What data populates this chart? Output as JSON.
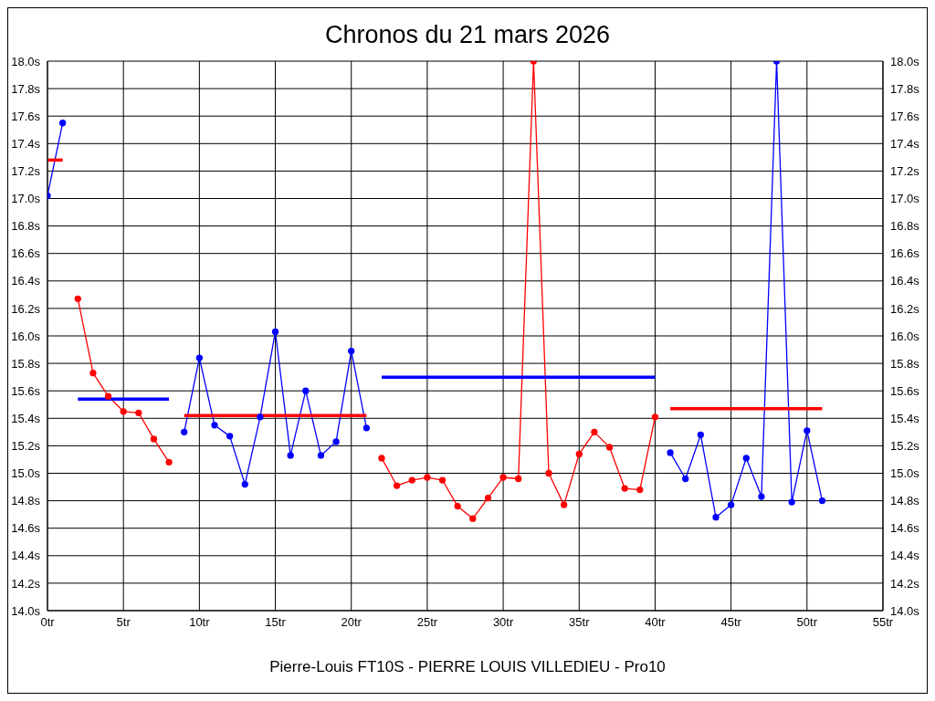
{
  "chart_data": {
    "type": "line",
    "title": "Chronos du 21 mars 2026",
    "annotations": [
      "Pierre-Louis FT10S - PIERRE LOUIS VILLEDIEU - Pro10"
    ],
    "series": [
      {
        "color": "#0000ff",
        "marker": "circle",
        "x": [
          0,
          1
        ],
        "values": [
          17.02,
          17.55
        ]
      },
      {
        "color": "#ff0000",
        "marker": "none",
        "x": [
          0,
          1
        ],
        "values": [
          17.28,
          17.28
        ]
      },
      {
        "color": "#ff0000",
        "marker": "circle",
        "x": [
          2,
          3,
          4,
          5,
          6,
          7,
          8
        ],
        "values": [
          16.27,
          15.73,
          15.56,
          15.45,
          15.44,
          15.25,
          15.08
        ]
      },
      {
        "color": "#0000ff",
        "marker": "none",
        "x": [
          2,
          8
        ],
        "values": [
          15.54,
          15.54
        ]
      },
      {
        "color": "#0000ff",
        "marker": "circle",
        "x": [
          9,
          10,
          11,
          12,
          13,
          14,
          15,
          16,
          17,
          18,
          19,
          20,
          21
        ],
        "values": [
          15.3,
          15.84,
          15.35,
          15.27,
          14.92,
          15.41,
          16.03,
          15.13,
          15.6,
          15.13,
          15.23,
          15.89,
          15.33
        ]
      },
      {
        "color": "#ff0000",
        "marker": "none",
        "x": [
          9,
          21
        ],
        "values": [
          15.42,
          15.42
        ]
      },
      {
        "color": "#ff0000",
        "marker": "circle",
        "x": [
          22,
          23,
          24,
          25,
          26,
          27,
          28,
          29,
          30,
          31,
          32,
          33,
          34,
          35,
          36,
          37,
          38,
          39,
          40
        ],
        "values": [
          15.11,
          14.91,
          14.95,
          14.97,
          14.95,
          14.76,
          14.67,
          14.82,
          14.97,
          14.96,
          18.0,
          15.0,
          14.77,
          15.14,
          15.3,
          15.19,
          14.89,
          14.88,
          15.41
        ]
      },
      {
        "color": "#0000ff",
        "marker": "none",
        "x": [
          22,
          40
        ],
        "values": [
          15.7,
          15.7
        ]
      },
      {
        "color": "#0000ff",
        "marker": "circle",
        "x": [
          41,
          42,
          43,
          44,
          45,
          46,
          47,
          48,
          49,
          50,
          51
        ],
        "values": [
          15.15,
          14.96,
          15.28,
          14.68,
          14.77,
          15.11,
          14.83,
          18.0,
          14.79,
          15.31,
          14.8
        ]
      },
      {
        "color": "#ff0000",
        "marker": "none",
        "x": [
          41,
          51
        ],
        "values": [
          15.47,
          15.47
        ]
      }
    ],
    "xlim": [
      0,
      55
    ],
    "xticks": [
      {
        "value": 0,
        "label": "0tr"
      },
      {
        "value": 5,
        "label": "5tr"
      },
      {
        "value": 10,
        "label": "10tr"
      },
      {
        "value": 15,
        "label": "15tr"
      },
      {
        "value": 20,
        "label": "20tr"
      },
      {
        "value": 25,
        "label": "25tr"
      },
      {
        "value": 30,
        "label": "30tr"
      },
      {
        "value": 35,
        "label": "35tr"
      },
      {
        "value": 40,
        "label": "40tr"
      },
      {
        "value": 45,
        "label": "45tr"
      },
      {
        "value": 50,
        "label": "50tr"
      },
      {
        "value": 55,
        "label": "55tr"
      }
    ],
    "ylim": [
      14.0,
      18.0
    ],
    "yticks": [
      {
        "value": 14.0,
        "label": "14.0s"
      },
      {
        "value": 14.2,
        "label": "14.2s"
      },
      {
        "value": 14.4,
        "label": "14.4s"
      },
      {
        "value": 14.6,
        "label": "14.6s"
      },
      {
        "value": 14.8,
        "label": "14.8s"
      },
      {
        "value": 15.0,
        "label": "15.0s"
      },
      {
        "value": 15.2,
        "label": "15.2s"
      },
      {
        "value": 15.4,
        "label": "15.4s"
      },
      {
        "value": 15.6,
        "label": "15.6s"
      },
      {
        "value": 15.8,
        "label": "15.8s"
      },
      {
        "value": 16.0,
        "label": "16.0s"
      },
      {
        "value": 16.2,
        "label": "16.2s"
      },
      {
        "value": 16.4,
        "label": "16.4s"
      },
      {
        "value": 16.6,
        "label": "16.6s"
      },
      {
        "value": 16.8,
        "label": "16.8s"
      },
      {
        "value": 17.0,
        "label": "17.0s"
      },
      {
        "value": 17.2,
        "label": "17.2s"
      },
      {
        "value": 17.4,
        "label": "17.4s"
      },
      {
        "value": 17.6,
        "label": "17.6s"
      },
      {
        "value": 17.8,
        "label": "17.8s"
      },
      {
        "value": 18.0,
        "label": "18.0s"
      }
    ],
    "y2lim": [
      14.0,
      18.0
    ],
    "y2ticks": [
      {
        "value": 14.0,
        "label": "14.0s"
      },
      {
        "value": 14.2,
        "label": "14.2s"
      },
      {
        "value": 14.4,
        "label": "14.4s"
      },
      {
        "value": 14.6,
        "label": "14.6s"
      },
      {
        "value": 14.8,
        "label": "14.8s"
      },
      {
        "value": 15.0,
        "label": "15.0s"
      },
      {
        "value": 15.2,
        "label": "15.2s"
      },
      {
        "value": 15.4,
        "label": "15.4s"
      },
      {
        "value": 15.6,
        "label": "15.6s"
      },
      {
        "value": 15.8,
        "label": "15.8s"
      },
      {
        "value": 16.0,
        "label": "16.0s"
      },
      {
        "value": 16.2,
        "label": "16.2s"
      },
      {
        "value": 16.4,
        "label": "16.4s"
      },
      {
        "value": 16.6,
        "label": "16.6s"
      },
      {
        "value": 16.8,
        "label": "16.8s"
      },
      {
        "value": 17.0,
        "label": "17.0s"
      },
      {
        "value": 17.2,
        "label": "17.2s"
      },
      {
        "value": 17.4,
        "label": "17.4s"
      },
      {
        "value": 17.6,
        "label": "17.6s"
      },
      {
        "value": 17.8,
        "label": "17.8s"
      },
      {
        "value": 18.0,
        "label": "18.0s"
      }
    ],
    "grid": true,
    "legend": false
  }
}
